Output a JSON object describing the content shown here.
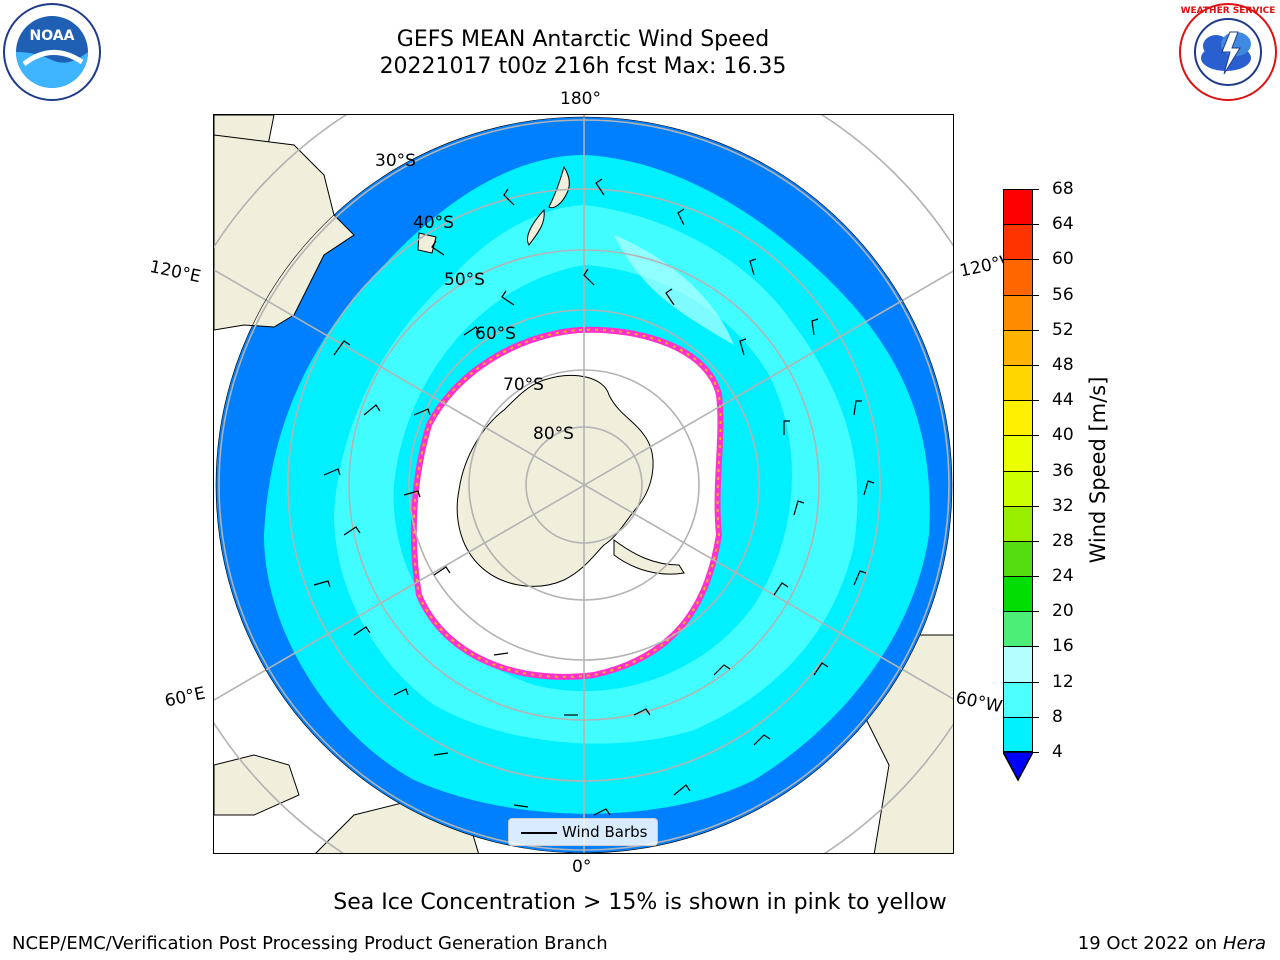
{
  "title": {
    "line1": "GEFS MEAN Antarctic Wind Speed",
    "line2": "20221017 t00z 216h fcst   Max: 16.35"
  },
  "map": {
    "longitude_labels": {
      "top": "180°",
      "bottom": "0°",
      "upper_left": "120°E",
      "lower_left": "60°E",
      "upper_right": "120°W",
      "lower_right": "60°W"
    },
    "latitude_labels": [
      "30°S",
      "40°S",
      "50°S",
      "60°S",
      "70°S",
      "80°S"
    ],
    "legend": {
      "entry": "Wind Barbs"
    },
    "colors": {
      "land": "#efefdb",
      "ice": "#ffffff",
      "sea_ice_edge": "#ff33cc",
      "sea_ice_inner": "#ffb21a",
      "graticule": "#b3b3b3"
    }
  },
  "colorbar": {
    "title": "Wind Speed [m/s]",
    "ticks": [
      "68",
      "64",
      "60",
      "56",
      "52",
      "48",
      "44",
      "40",
      "36",
      "32",
      "28",
      "24",
      "20",
      "16",
      "12",
      "8",
      "4"
    ],
    "colors_top_to_bottom": [
      "#ff0000",
      "#ff3300",
      "#ff6600",
      "#ff8c00",
      "#ffb300",
      "#ffd700",
      "#fff000",
      "#eaff00",
      "#ccff00",
      "#99ee00",
      "#55dd11",
      "#00dd00",
      "#4dee77",
      "#b3ffff",
      "#4dffff",
      "#00f0ff",
      "#0080ff"
    ],
    "under_color": "#0000ff"
  },
  "caption": "Sea Ice Concentration > 15% is shown in pink to yellow",
  "footer": {
    "left": "NCEP/EMC/Verification Post Processing Product Generation Branch",
    "right_prefix": "19 Oct 2022 on ",
    "right_host": "Hera"
  },
  "logos": {
    "noaa": "NOAA",
    "nws": "NATIONAL WEATHER SERVICE"
  }
}
